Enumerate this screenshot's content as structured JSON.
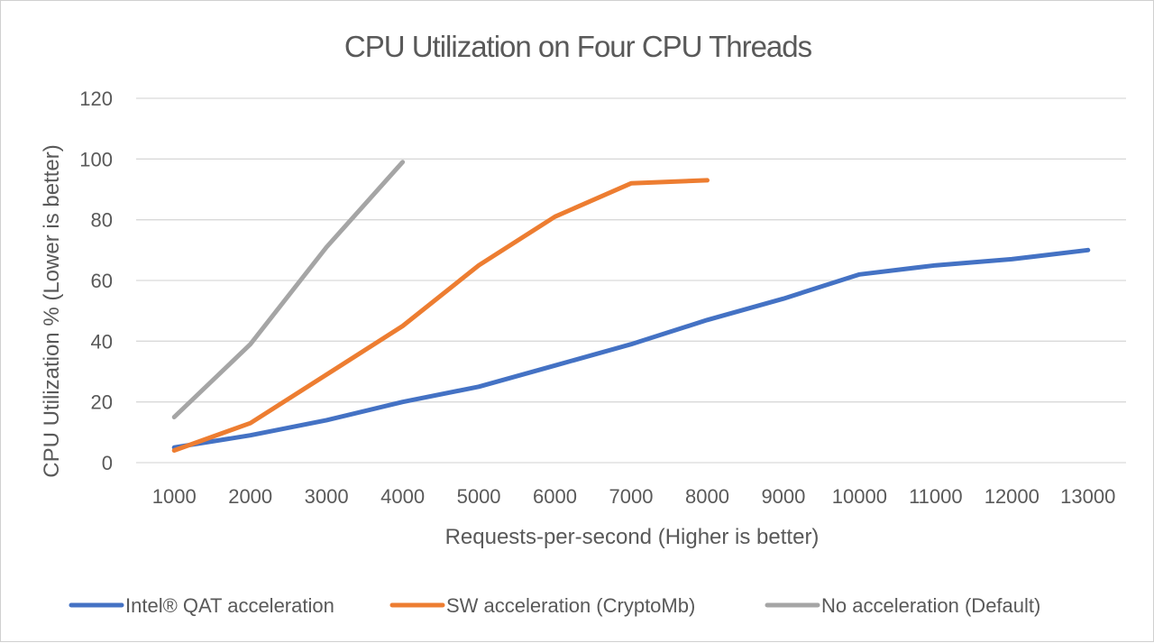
{
  "chart_data": {
    "type": "line",
    "title": "CPU Utilization on Four CPU Threads",
    "xlabel": "Requests-per-second (Higher is better)",
    "ylabel": "CPU Utilization % (Lower is better)",
    "categories": [
      "1000",
      "2000",
      "3000",
      "4000",
      "5000",
      "6000",
      "7000",
      "8000",
      "9000",
      "10000",
      "11000",
      "12000",
      "13000"
    ],
    "ylim": [
      0,
      120
    ],
    "yticks": [
      "0",
      "20",
      "40",
      "60",
      "80",
      "100",
      "120"
    ],
    "grid": true,
    "legend_position": "bottom",
    "series": [
      {
        "name": "Intel® QAT acceleration",
        "color": "#4472c4",
        "values": [
          5,
          9,
          14,
          20,
          25,
          32,
          39,
          47,
          54,
          62,
          65,
          67,
          70
        ]
      },
      {
        "name": "SW acceleration (CryptoMb)",
        "color": "#ed7d31",
        "values": [
          4,
          13,
          29,
          45,
          65,
          81,
          92,
          93,
          null,
          null,
          null,
          null,
          null
        ]
      },
      {
        "name": "No acceleration (Default)",
        "color": "#a5a5a5",
        "values": [
          15,
          39,
          71,
          99,
          null,
          null,
          null,
          null,
          null,
          null,
          null,
          null,
          null
        ]
      }
    ]
  }
}
